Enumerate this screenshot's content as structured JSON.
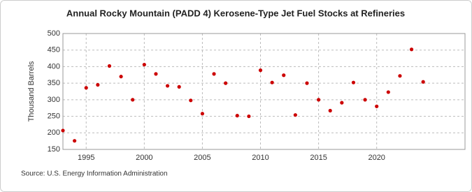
{
  "chart_data": {
    "type": "scatter",
    "title": "Annual Rocky Mountain (PADD 4) Kerosene-Type Jet Fuel Stocks at Refineries",
    "y_label": "Thousand Barrels",
    "source": "Source: U.S. Energy Information Administration",
    "x": [
      1993,
      1994,
      1995,
      1996,
      1997,
      1998,
      1999,
      2000,
      2001,
      2002,
      2003,
      2004,
      2005,
      2006,
      2007,
      2008,
      2009,
      2010,
      2011,
      2012,
      2013,
      2014,
      2015,
      2016,
      2017,
      2018,
      2019,
      2020,
      2021,
      2022,
      2023,
      2024
    ],
    "values": [
      207,
      176,
      336,
      345,
      402,
      370,
      300,
      406,
      378,
      342,
      339,
      298,
      258,
      378,
      350,
      252,
      250,
      389,
      352,
      374,
      254,
      350,
      300,
      267,
      291,
      352,
      300,
      280,
      323,
      372,
      452,
      354
    ],
    "color": "#cc0000",
    "xlim": [
      1993,
      2027.6
    ],
    "xticks": [
      1995,
      2000,
      2005,
      2010,
      2015,
      2020
    ],
    "ylim": [
      150,
      500
    ],
    "yticks": [
      150,
      200,
      250,
      300,
      350,
      400,
      450,
      500
    ],
    "grid": true
  }
}
